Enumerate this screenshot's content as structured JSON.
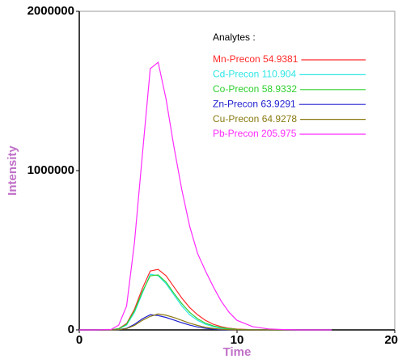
{
  "chart_data": {
    "type": "line",
    "x_label": "Time",
    "y_label": "Intensity",
    "legend_title": "Analytes :",
    "x": [
      0,
      1,
      2,
      2.5,
      3,
      3.5,
      4,
      4.5,
      5,
      5.5,
      6,
      6.5,
      7,
      7.5,
      8,
      8.5,
      9,
      9.5,
      10,
      11,
      12,
      13,
      14,
      16
    ],
    "series": [
      {
        "name": "Mn-Precon 54.9381",
        "color": "#ff2a2a",
        "values": [
          0,
          0,
          1000,
          8000,
          40000,
          130000,
          260000,
          370000,
          380000,
          340000,
          270000,
          200000,
          140000,
          95000,
          60000,
          35000,
          20000,
          10000,
          5000,
          1500,
          500,
          0,
          0,
          0
        ]
      },
      {
        "name": "Cd-Precon 110.904",
        "color": "#30e6e6",
        "values": [
          0,
          0,
          800,
          6000,
          30000,
          110000,
          230000,
          350000,
          340000,
          290000,
          220000,
          150000,
          95000,
          60000,
          35000,
          20000,
          10000,
          5000,
          2000,
          500,
          0,
          0,
          0,
          0
        ]
      },
      {
        "name": "Co-Precon 58.9332",
        "color": "#2ed02e",
        "values": [
          0,
          0,
          800,
          7000,
          35000,
          120000,
          240000,
          340000,
          345000,
          300000,
          230000,
          165000,
          110000,
          70000,
          42000,
          25000,
          14000,
          7000,
          3000,
          1000,
          300,
          0,
          0,
          0
        ]
      },
      {
        "name": "Zn-Precon 63.9291",
        "color": "#2020d0",
        "values": [
          0,
          0,
          200,
          2000,
          10000,
          35000,
          70000,
          95000,
          90000,
          78000,
          62000,
          45000,
          30000,
          18000,
          10000,
          5000,
          2000,
          1000,
          0,
          0,
          0,
          0,
          0,
          0
        ]
      },
      {
        "name": "Cu-Precon 64.9278",
        "color": "#8a7a10",
        "values": [
          0,
          0,
          200,
          1500,
          8000,
          28000,
          60000,
          85000,
          100000,
          92000,
          78000,
          60000,
          42000,
          28000,
          16000,
          9000,
          4000,
          1500,
          500,
          0,
          0,
          0,
          0,
          0
        ]
      },
      {
        "name": "Pb-Precon 205.975",
        "color": "#ff2aff",
        "values": [
          0,
          0,
          2000,
          30000,
          150000,
          550000,
          1100000,
          1640000,
          1680000,
          1450000,
          1150000,
          880000,
          650000,
          480000,
          370000,
          270000,
          180000,
          110000,
          60000,
          20000,
          6000,
          2000,
          0,
          0
        ]
      }
    ],
    "xlim": [
      0,
      20
    ],
    "ylim": [
      0,
      2000000
    ],
    "xticks": [
      0,
      10,
      20
    ],
    "yticks": [
      0,
      1000000,
      2000000
    ]
  }
}
